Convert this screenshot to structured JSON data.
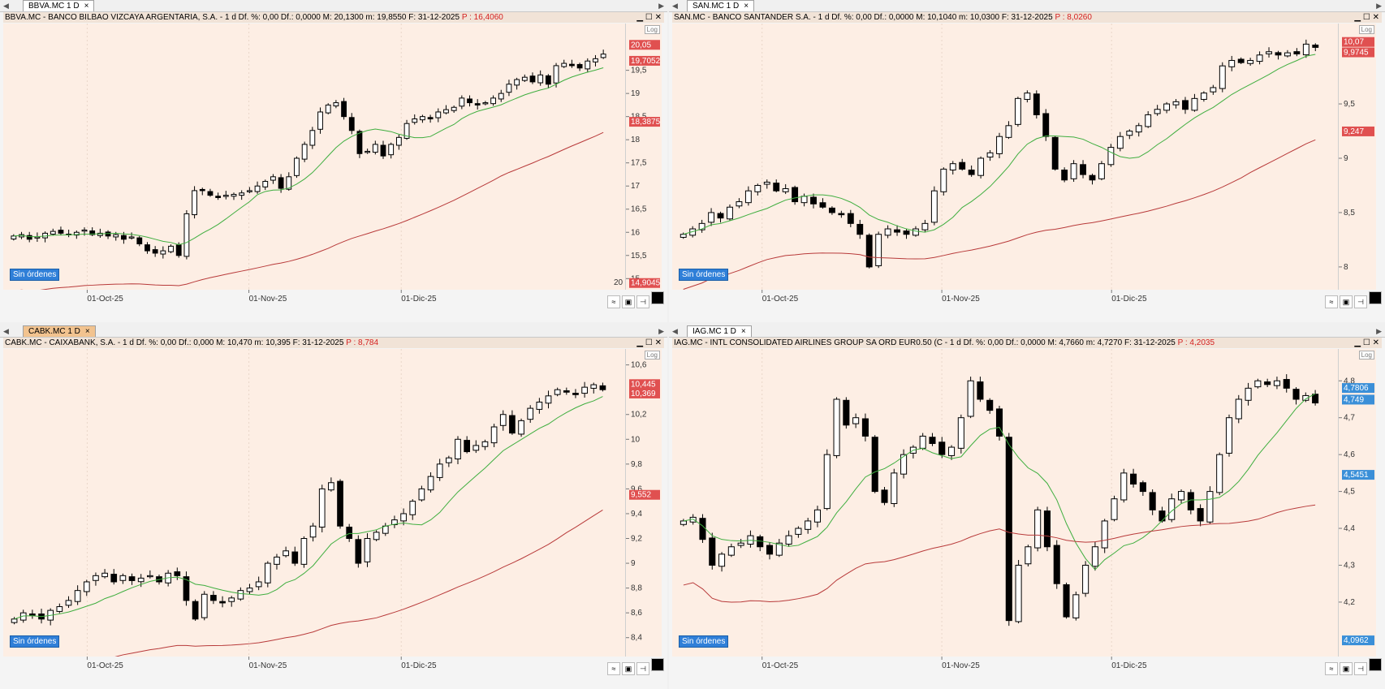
{
  "charts": [
    {
      "tab_label": "BBVA.MC 1 D",
      "header_text": "BBVA.MC - BANCO BILBAO VIZCAYA ARGENTARIA, S.A. -  1 d  Df. %: 0,00  Df.: 0,0000  M: 20,1300  m: 19,8550  F: 31-12-2025",
      "header_price": "P : 16,4060",
      "y_ticks": [
        "15",
        "15,5",
        "16",
        "16,5",
        "17",
        "17,5",
        "18",
        "18,5",
        "19",
        "19,5"
      ],
      "x_ticks": [
        "01-Oct-25",
        "01-Nov-25",
        "01-Dic-25"
      ],
      "price_labels": [
        {
          "text": "20,05",
          "color": "#e05050"
        },
        {
          "text": "19,7052",
          "color": "#e05050"
        },
        {
          "text": "18,3875",
          "color": "#e05050"
        },
        {
          "text": "14,9045",
          "color": "#e05050"
        }
      ],
      "extra_text": "20",
      "orders_label": "Sin órdenes",
      "log_label": "Log"
    },
    {
      "tab_label": "SAN.MC 1 D",
      "header_text": "SAN.MC - BANCO SANTANDER S.A. -  1 d  Df. %: 0,00  Df.: 0,0000  M: 10,1040  m: 10,0300  F: 31-12-2025",
      "header_price": "P : 8,0260",
      "y_ticks": [
        "8",
        "8,5",
        "9",
        "9,5"
      ],
      "x_ticks": [
        "01-Oct-25",
        "01-Nov-25",
        "01-Dic-25"
      ],
      "price_labels": [
        {
          "text": "10,07",
          "color": "#e05050"
        },
        {
          "text": "9,9745",
          "color": "#e05050"
        },
        {
          "text": "9,247",
          "color": "#e05050"
        }
      ],
      "orders_label": "Sin órdenes",
      "log_label": "Log"
    },
    {
      "tab_label": "CABK.MC 1 D",
      "header_text": "CABK.MC - CAIXABANK, S.A. -  1 d  Df. %: 0,00  Df.: 0,000  M: 10,470  m: 10,395  F: 31-12-2025",
      "header_price": "P : 8,784",
      "y_ticks": [
        "8,4",
        "8,6",
        "8,8",
        "9",
        "9,2",
        "9,4",
        "9,6",
        "9,8",
        "10",
        "10,2",
        "10,6"
      ],
      "x_ticks": [
        "01-Oct-25",
        "01-Nov-25",
        "01-Dic-25"
      ],
      "price_labels": [
        {
          "text": "10,445",
          "color": "#e05050"
        },
        {
          "text": "10,369",
          "color": "#e05050"
        },
        {
          "text": "9,552",
          "color": "#e05050"
        }
      ],
      "orders_label": "Sin órdenes",
      "log_label": "Log"
    },
    {
      "tab_label": "IAG.MC 1 D",
      "header_text": "IAG.MC - INTL CONSOLIDATED AIRLINES GROUP SA ORD EUR0.50 (C -  1 d  Df. %: 0,00  Df.: 0,0000  M: 4,7660  m: 4,7270  F: 31-12-2025",
      "header_price": "P : 4,2035",
      "y_ticks": [
        "4,2",
        "4,3",
        "4,4",
        "4,5",
        "4,6",
        "4,7",
        "4,8"
      ],
      "x_ticks": [
        "01-Oct-25",
        "01-Nov-25",
        "01-Dic-25"
      ],
      "price_labels": [
        {
          "text": "4,7806",
          "color": "#3a8fd8"
        },
        {
          "text": "4,749",
          "color": "#3a8fd8"
        },
        {
          "text": "4,5451",
          "color": "#3a8fd8"
        },
        {
          "text": "4,0962",
          "color": "#3a8fd8"
        }
      ],
      "orders_label": "Sin órdenes",
      "log_label": "Log"
    }
  ],
  "chart_data": [
    {
      "type": "candlestick",
      "x_ticks": [
        "01-Oct-25",
        "01-Nov-25",
        "01-Dic-25"
      ],
      "ylim": [
        14.9,
        20.3
      ],
      "closes": [
        15.92,
        15.95,
        15.85,
        15.9,
        15.98,
        16.02,
        15.98,
        15.96,
        16.0,
        16.05,
        15.95,
        15.98,
        15.92,
        15.95,
        15.85,
        15.9,
        15.75,
        15.6,
        15.55,
        15.6,
        15.7,
        15.5,
        16.4,
        16.9,
        16.9,
        16.8,
        16.75,
        16.8,
        16.82,
        16.85,
        16.9,
        17.0,
        17.1,
        17.2,
        16.95,
        17.2,
        17.6,
        17.9,
        18.2,
        18.6,
        18.75,
        18.8,
        18.5,
        18.2,
        17.7,
        17.75,
        17.9,
        17.65,
        17.9,
        18.05,
        18.35,
        18.45,
        18.5,
        18.45,
        18.6,
        18.65,
        18.7,
        18.9,
        18.8,
        18.75,
        18.8,
        18.9,
        19.0,
        19.2,
        19.3,
        19.35,
        19.25,
        19.4,
        19.2,
        19.6,
        19.65,
        19.6,
        19.55,
        19.7,
        19.75,
        19.85
      ],
      "series": [
        {
          "name": "",
          "values": []
        }
      ]
    },
    {
      "type": "candlestick",
      "x_ticks": [
        "01-Oct-25",
        "01-Nov-25",
        "01-Dic-25"
      ],
      "ylim": [
        7.85,
        10.15
      ],
      "closes": [
        8.3,
        8.35,
        8.4,
        8.5,
        8.45,
        8.55,
        8.6,
        8.7,
        8.75,
        8.78,
        8.7,
        8.72,
        8.6,
        8.65,
        8.58,
        8.55,
        8.5,
        8.48,
        8.4,
        8.3,
        8.0,
        8.3,
        8.35,
        8.32,
        8.3,
        8.35,
        8.4,
        8.7,
        8.9,
        8.95,
        8.9,
        8.85,
        9.0,
        9.05,
        9.2,
        9.3,
        9.55,
        9.6,
        9.4,
        9.2,
        8.9,
        8.8,
        8.95,
        8.85,
        8.8,
        8.95,
        9.1,
        9.2,
        9.25,
        9.3,
        9.4,
        9.45,
        9.5,
        9.52,
        9.45,
        9.55,
        9.6,
        9.65,
        9.85,
        9.9,
        9.88,
        9.9,
        9.95,
        9.98,
        9.95,
        9.97,
        9.96,
        10.05,
        10.02
      ],
      "series": [
        {
          "name": "",
          "values": []
        }
      ]
    },
    {
      "type": "candlestick",
      "x_ticks": [
        "01-Oct-25",
        "01-Nov-25",
        "01-Dic-25"
      ],
      "ylim": [
        8.3,
        10.65
      ],
      "closes": [
        8.55,
        8.6,
        8.58,
        8.55,
        8.62,
        8.65,
        8.7,
        8.78,
        8.85,
        8.9,
        8.92,
        8.85,
        8.9,
        8.86,
        8.88,
        8.9,
        8.85,
        8.92,
        8.9,
        8.7,
        8.55,
        8.75,
        8.7,
        8.68,
        8.72,
        8.78,
        8.8,
        8.85,
        9.0,
        9.05,
        9.1,
        9.0,
        9.2,
        9.3,
        9.6,
        9.65,
        9.3,
        9.2,
        9.0,
        9.2,
        9.25,
        9.3,
        9.35,
        9.4,
        9.5,
        9.6,
        9.7,
        9.8,
        9.85,
        10.0,
        9.9,
        9.95,
        9.98,
        10.1,
        10.2,
        10.05,
        10.15,
        10.25,
        10.3,
        10.35,
        10.4,
        10.38,
        10.36,
        10.42,
        10.44,
        10.4
      ],
      "series": [
        {
          "name": "",
          "values": []
        }
      ]
    },
    {
      "type": "candlestick",
      "x_ticks": [
        "01-Oct-25",
        "01-Nov-25",
        "01-Dic-25"
      ],
      "ylim": [
        4.07,
        4.86
      ],
      "closes": [
        4.42,
        4.43,
        4.37,
        4.3,
        4.33,
        4.35,
        4.36,
        4.38,
        4.35,
        4.33,
        4.36,
        4.38,
        4.4,
        4.42,
        4.45,
        4.6,
        4.75,
        4.68,
        4.7,
        4.65,
        4.5,
        4.47,
        4.55,
        4.6,
        4.62,
        4.65,
        4.63,
        4.6,
        4.62,
        4.7,
        4.8,
        4.75,
        4.72,
        4.65,
        4.15,
        4.3,
        4.35,
        4.45,
        4.35,
        4.25,
        4.16,
        4.22,
        4.3,
        4.35,
        4.42,
        4.48,
        4.55,
        4.52,
        4.5,
        4.45,
        4.42,
        4.48,
        4.5,
        4.45,
        4.42,
        4.5,
        4.6,
        4.7,
        4.75,
        4.78,
        4.8,
        4.79,
        4.8,
        4.78,
        4.75,
        4.76,
        4.74
      ],
      "series": [
        {
          "name": "",
          "values": []
        }
      ]
    }
  ]
}
